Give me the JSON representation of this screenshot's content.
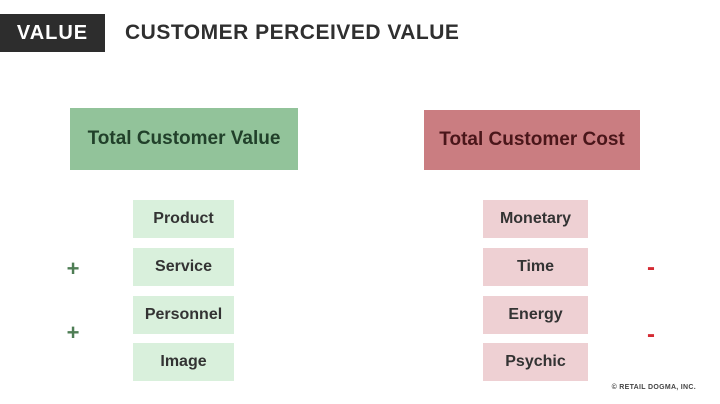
{
  "header": {
    "badge": "VALUE",
    "title": "CUSTOMER PERCEIVED VALUE"
  },
  "columns": {
    "value": {
      "title": "Total Customer Value",
      "items": [
        "Product",
        "Service",
        "Personnel",
        "Image"
      ],
      "operator": "+"
    },
    "cost": {
      "title": "Total Customer Cost",
      "items": [
        "Monetary",
        "Time",
        "Energy",
        "Psychic"
      ],
      "operator": "-"
    }
  },
  "footer": {
    "copyright": "© RETAIL DOGMA, INC."
  },
  "theme": {
    "page-bg": "#ffffff",
    "badge-bg": "#2d2d2d",
    "badge-text": "#ffffff",
    "title-text": "#2f2f2f",
    "value-header-bg": "#92c39a",
    "value-header-text": "#21402a",
    "value-item-bg": "#d9f0dc",
    "cost-header-bg": "#ca7d81",
    "cost-header-text": "#4a161a",
    "cost-item-bg": "#eed0d3",
    "item-text": "#333333",
    "plus-color": "#4e7d54",
    "minus-color": "#d42b33",
    "copyright-text": "#444444"
  }
}
